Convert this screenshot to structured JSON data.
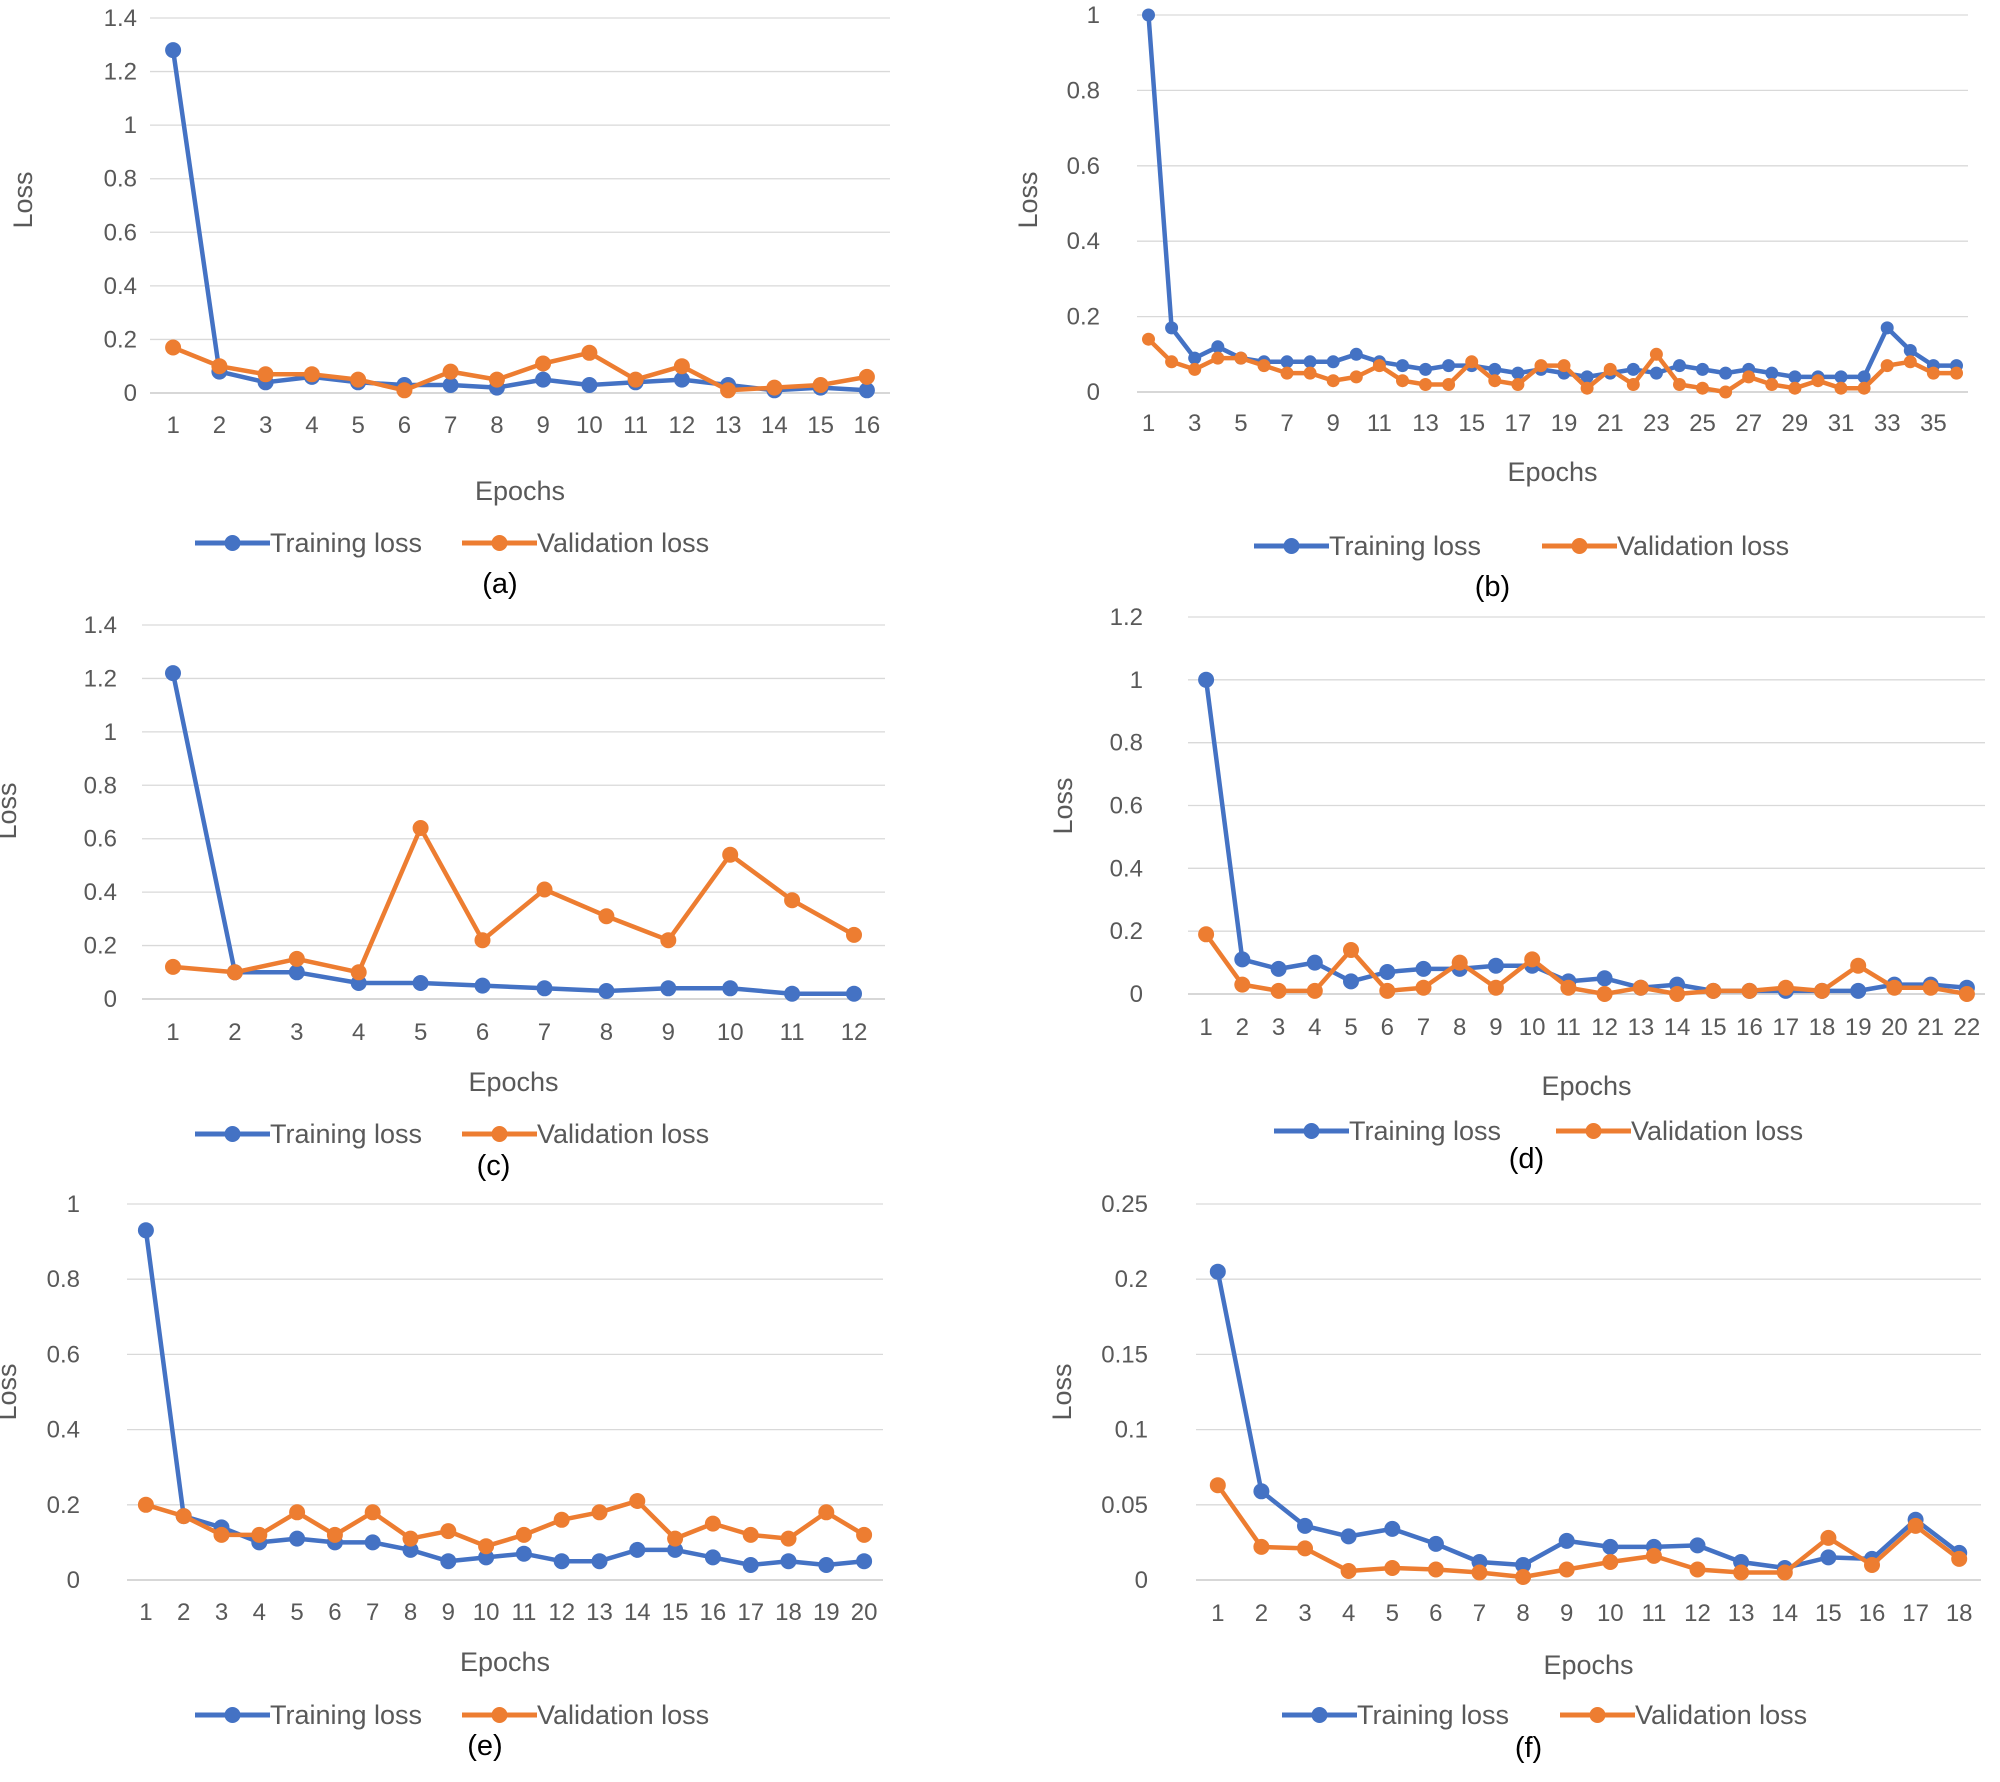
{
  "colors": {
    "training": "#4472C4",
    "validation": "#ED7D31"
  },
  "chart_data": [
    {
      "type": "line",
      "caption": "(a)",
      "xlabel": "Epochs",
      "ylabel": "Loss",
      "ylim": [
        0,
        1.4
      ],
      "yticks": [
        "0",
        "0.2",
        "0.4",
        "0.6",
        "0.8",
        "1",
        "1.2",
        "1.4"
      ],
      "x": [
        1,
        2,
        3,
        4,
        5,
        6,
        7,
        8,
        9,
        10,
        11,
        12,
        13,
        14,
        15,
        16
      ],
      "xtick_labels": [
        "1",
        "2",
        "3",
        "4",
        "5",
        "6",
        "7",
        "8",
        "9",
        "10",
        "11",
        "12",
        "13",
        "14",
        "15",
        "16"
      ],
      "legend": [
        "Training loss",
        "Validation loss"
      ],
      "series": [
        {
          "name": "Training loss",
          "values": [
            1.28,
            0.08,
            0.04,
            0.06,
            0.04,
            0.03,
            0.03,
            0.02,
            0.05,
            0.03,
            0.04,
            0.05,
            0.03,
            0.01,
            0.02,
            0.01
          ]
        },
        {
          "name": "Validation loss",
          "values": [
            0.17,
            0.1,
            0.07,
            0.07,
            0.05,
            0.01,
            0.08,
            0.05,
            0.11,
            0.15,
            0.05,
            0.1,
            0.01,
            0.02,
            0.03,
            0.06
          ]
        }
      ]
    },
    {
      "type": "line",
      "caption": "(b)",
      "xlabel": "Epochs",
      "ylabel": "Loss",
      "ylim": [
        0,
        1
      ],
      "yticks": [
        "0",
        "0.2",
        "0.4",
        "0.6",
        "0.8",
        "1"
      ],
      "x": [
        1,
        2,
        3,
        4,
        5,
        6,
        7,
        8,
        9,
        10,
        11,
        12,
        13,
        14,
        15,
        16,
        17,
        18,
        19,
        20,
        21,
        22,
        23,
        24,
        25,
        26,
        27,
        28,
        29,
        30,
        31,
        32,
        33,
        34,
        35,
        36
      ],
      "xtick_labels": [
        "1",
        "",
        "3",
        "",
        "5",
        "",
        "7",
        "",
        "9",
        "",
        "11",
        "",
        "13",
        "",
        "15",
        "",
        "17",
        "",
        "19",
        "",
        "21",
        "",
        "23",
        "",
        "25",
        "",
        "27",
        "",
        "29",
        "",
        "31",
        "",
        "33",
        "",
        "35",
        ""
      ],
      "legend": [
        "Training loss",
        "Validation loss"
      ],
      "series": [
        {
          "name": "Training loss",
          "values": [
            1.0,
            0.17,
            0.09,
            0.12,
            0.09,
            0.08,
            0.08,
            0.08,
            0.08,
            0.1,
            0.08,
            0.07,
            0.06,
            0.07,
            0.07,
            0.06,
            0.05,
            0.06,
            0.05,
            0.04,
            0.05,
            0.06,
            0.05,
            0.07,
            0.06,
            0.05,
            0.06,
            0.05,
            0.04,
            0.04,
            0.04,
            0.04,
            0.17,
            0.11,
            0.07,
            0.07
          ]
        },
        {
          "name": "Validation loss",
          "values": [
            0.14,
            0.08,
            0.06,
            0.09,
            0.09,
            0.07,
            0.05,
            0.05,
            0.03,
            0.04,
            0.07,
            0.03,
            0.02,
            0.02,
            0.08,
            0.03,
            0.02,
            0.07,
            0.07,
            0.01,
            0.06,
            0.02,
            0.1,
            0.02,
            0.01,
            0.0,
            0.04,
            0.02,
            0.01,
            0.03,
            0.01,
            0.01,
            0.07,
            0.08,
            0.05,
            0.05
          ]
        }
      ]
    },
    {
      "type": "line",
      "caption": "(c)",
      "xlabel": "Epochs",
      "ylabel": "Loss",
      "ylim": [
        0,
        1.4
      ],
      "yticks": [
        "0",
        "0.2",
        "0.4",
        "0.6",
        "0.8",
        "1",
        "1.2",
        "1.4"
      ],
      "x": [
        1,
        2,
        3,
        4,
        5,
        6,
        7,
        8,
        9,
        10,
        11,
        12
      ],
      "xtick_labels": [
        "1",
        "2",
        "3",
        "4",
        "5",
        "6",
        "7",
        "8",
        "9",
        "10",
        "11",
        "12"
      ],
      "legend": [
        "Training loss",
        "Validation loss"
      ],
      "series": [
        {
          "name": "Training loss",
          "values": [
            1.22,
            0.1,
            0.1,
            0.06,
            0.06,
            0.05,
            0.04,
            0.03,
            0.04,
            0.04,
            0.02,
            0.02
          ]
        },
        {
          "name": "Validation loss",
          "values": [
            0.12,
            0.1,
            0.15,
            0.1,
            0.64,
            0.22,
            0.41,
            0.31,
            0.22,
            0.54,
            0.37,
            0.24
          ]
        }
      ]
    },
    {
      "type": "line",
      "caption": "(d)",
      "xlabel": "Epochs",
      "ylabel": "Loss",
      "ylim": [
        0,
        1.2
      ],
      "yticks": [
        "0",
        "0.2",
        "0.4",
        "0.6",
        "0.8",
        "1",
        "1.2"
      ],
      "x": [
        1,
        2,
        3,
        4,
        5,
        6,
        7,
        8,
        9,
        10,
        11,
        12,
        13,
        14,
        15,
        16,
        17,
        18,
        19,
        20,
        21,
        22
      ],
      "xtick_labels": [
        "1",
        "2",
        "3",
        "4",
        "5",
        "6",
        "7",
        "8",
        "9",
        "10",
        "11",
        "12",
        "13",
        "14",
        "15",
        "16",
        "17",
        "18",
        "19",
        "20",
        "21",
        "22"
      ],
      "legend": [
        "Training loss",
        "Validation loss"
      ],
      "series": [
        {
          "name": "Training loss",
          "values": [
            1.0,
            0.11,
            0.08,
            0.1,
            0.04,
            0.07,
            0.08,
            0.08,
            0.09,
            0.09,
            0.04,
            0.05,
            0.02,
            0.03,
            0.01,
            0.01,
            0.01,
            0.01,
            0.01,
            0.03,
            0.03,
            0.02
          ]
        },
        {
          "name": "Validation loss",
          "values": [
            0.19,
            0.03,
            0.01,
            0.01,
            0.14,
            0.01,
            0.02,
            0.1,
            0.02,
            0.11,
            0.02,
            0.0,
            0.02,
            0.0,
            0.01,
            0.01,
            0.02,
            0.01,
            0.09,
            0.02,
            0.02,
            0.0
          ]
        }
      ]
    },
    {
      "type": "line",
      "caption": "(e)",
      "xlabel": "Epochs",
      "ylabel": "Loss",
      "ylim": [
        0,
        1
      ],
      "yticks": [
        "0",
        "0.2",
        "0.4",
        "0.6",
        "0.8",
        "1"
      ],
      "x": [
        1,
        2,
        3,
        4,
        5,
        6,
        7,
        8,
        9,
        10,
        11,
        12,
        13,
        14,
        15,
        16,
        17,
        18,
        19,
        20
      ],
      "xtick_labels": [
        "1",
        "2",
        "3",
        "4",
        "5",
        "6",
        "7",
        "8",
        "9",
        "10",
        "11",
        "12",
        "13",
        "14",
        "15",
        "16",
        "17",
        "18",
        "19",
        "20"
      ],
      "legend": [
        "Training loss",
        "Validation loss"
      ],
      "series": [
        {
          "name": "Training loss",
          "values": [
            0.93,
            0.17,
            0.14,
            0.1,
            0.11,
            0.1,
            0.1,
            0.08,
            0.05,
            0.06,
            0.07,
            0.05,
            0.05,
            0.08,
            0.08,
            0.06,
            0.04,
            0.05,
            0.04,
            0.05
          ]
        },
        {
          "name": "Validation loss",
          "values": [
            0.2,
            0.17,
            0.12,
            0.12,
            0.18,
            0.12,
            0.18,
            0.11,
            0.13,
            0.09,
            0.12,
            0.16,
            0.18,
            0.21,
            0.11,
            0.15,
            0.12,
            0.11,
            0.18,
            0.12
          ]
        }
      ]
    },
    {
      "type": "line",
      "caption": "(f)",
      "xlabel": "Epochs",
      "ylabel": "Loss",
      "ylim": [
        0,
        0.25
      ],
      "yticks": [
        "0",
        "0.05",
        "0.1",
        "0.15",
        "0.2",
        "0.25"
      ],
      "x": [
        1,
        2,
        3,
        4,
        5,
        6,
        7,
        8,
        9,
        10,
        11,
        12,
        13,
        14,
        15,
        16,
        17,
        18
      ],
      "xtick_labels": [
        "1",
        "2",
        "3",
        "4",
        "5",
        "6",
        "7",
        "8",
        "9",
        "10",
        "11",
        "12",
        "13",
        "14",
        "15",
        "16",
        "17",
        "18"
      ],
      "legend": [
        "Training loss",
        "Validation loss"
      ],
      "series": [
        {
          "name": "Training loss",
          "values": [
            0.205,
            0.059,
            0.036,
            0.029,
            0.034,
            0.024,
            0.012,
            0.01,
            0.026,
            0.022,
            0.022,
            0.023,
            0.012,
            0.008,
            0.015,
            0.014,
            0.04,
            0.018
          ]
        },
        {
          "name": "Validation loss",
          "values": [
            0.063,
            0.022,
            0.021,
            0.006,
            0.008,
            0.007,
            0.005,
            0.002,
            0.007,
            0.012,
            0.016,
            0.007,
            0.005,
            0.005,
            0.028,
            0.01,
            0.036,
            0.014
          ]
        }
      ]
    }
  ]
}
